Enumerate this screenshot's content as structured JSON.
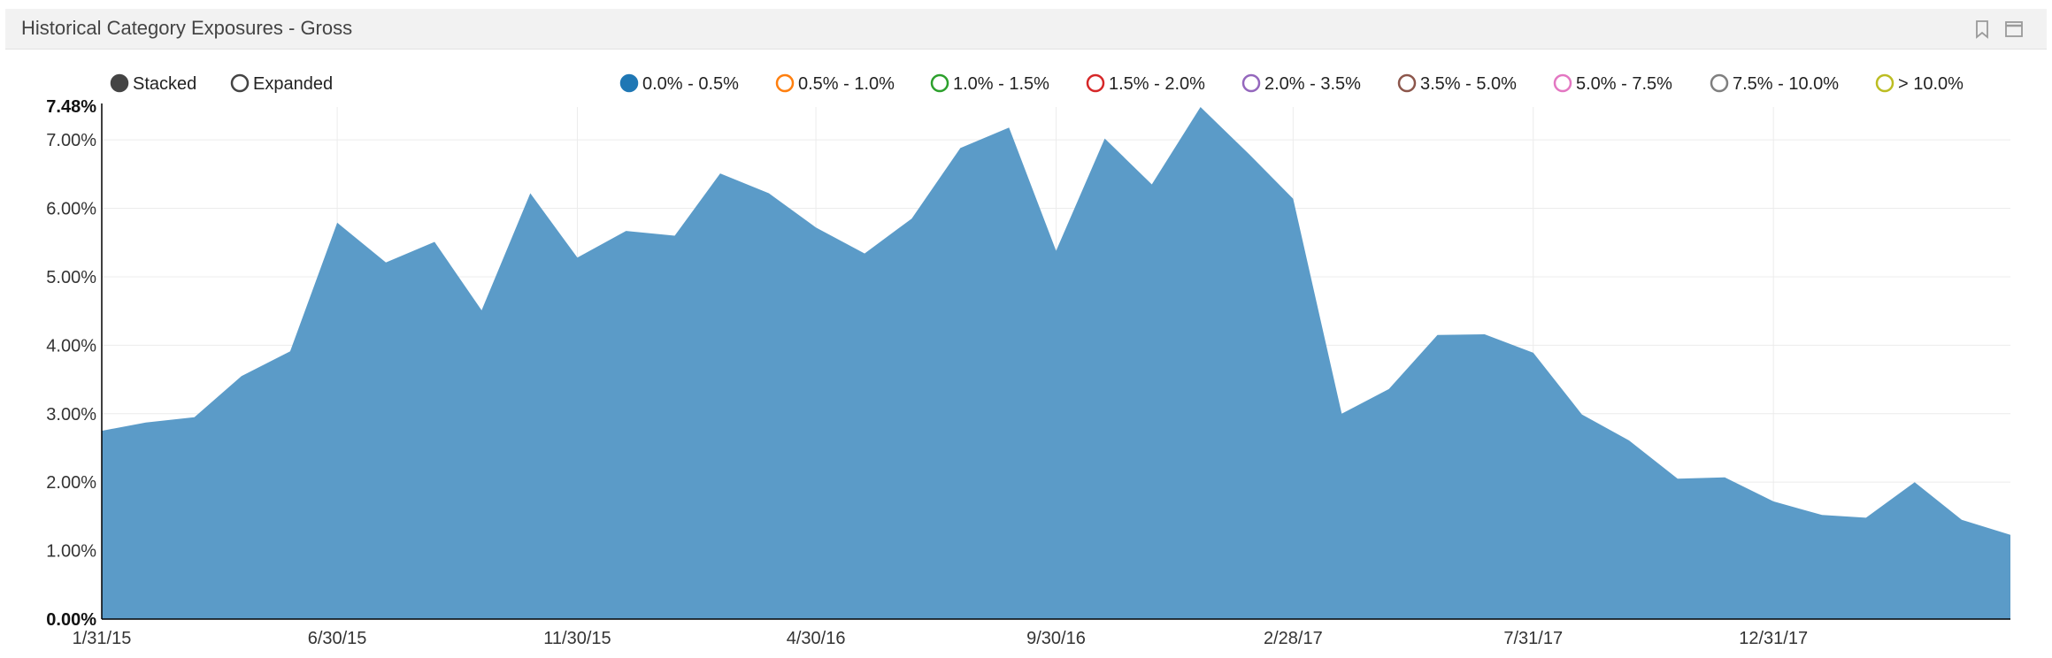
{
  "panel": {
    "title": "Historical Category Exposures - Gross",
    "icons": [
      "bookmark-icon",
      "maximize-icon"
    ]
  },
  "controls": {
    "mode_options": [
      {
        "label": "Stacked",
        "selected": true
      },
      {
        "label": "Expanded",
        "selected": false
      }
    ]
  },
  "legend": {
    "items": [
      {
        "label": "0.0% - 0.5%",
        "color": "#1f77b4",
        "active": true
      },
      {
        "label": "0.5% - 1.0%",
        "color": "#ff7f0e",
        "active": false
      },
      {
        "label": "1.0% - 1.5%",
        "color": "#2ca02c",
        "active": false
      },
      {
        "label": "1.5% - 2.0%",
        "color": "#d62728",
        "active": false
      },
      {
        "label": "2.0% - 3.5%",
        "color": "#9467bd",
        "active": false
      },
      {
        "label": "3.5% - 5.0%",
        "color": "#8c564b",
        "active": false
      },
      {
        "label": "5.0% - 7.5%",
        "color": "#e377c2",
        "active": false
      },
      {
        "label": "7.5% - 10.0%",
        "color": "#7f7f7f",
        "active": false
      },
      {
        "label": "> 10.0%",
        "color": "#bcbd22",
        "active": false
      }
    ]
  },
  "chart_data": {
    "type": "area",
    "stacked": true,
    "x_tick_labels": [
      "1/31/15",
      "6/30/15",
      "11/30/15",
      "4/30/16",
      "9/30/16",
      "2/28/17",
      "7/31/17",
      "12/31/17"
    ],
    "y_tick_labels": [
      "0.00%",
      "1.00%",
      "2.00%",
      "3.00%",
      "4.00%",
      "5.00%",
      "6.00%",
      "7.00%"
    ],
    "y_max_label": "7.48%",
    "ylim": [
      0,
      7.48
    ],
    "grid": true,
    "x": [
      "2015-01-31",
      "2015-02-28",
      "2015-03-31",
      "2015-04-30",
      "2015-05-31",
      "2015-06-30",
      "2015-07-31",
      "2015-08-31",
      "2015-09-30",
      "2015-10-31",
      "2015-11-30",
      "2015-12-31",
      "2016-01-31",
      "2016-02-29",
      "2016-03-31",
      "2016-04-30",
      "2016-05-31",
      "2016-06-30",
      "2016-07-31",
      "2016-08-31",
      "2016-09-30",
      "2016-10-31",
      "2016-11-30",
      "2016-12-31",
      "2017-01-31",
      "2017-02-28",
      "2017-03-31",
      "2017-04-30",
      "2017-05-31",
      "2017-06-30",
      "2017-07-31",
      "2017-08-31",
      "2017-09-30",
      "2017-10-31",
      "2017-11-30",
      "2017-12-31",
      "2018-01-31",
      "2018-02-28",
      "2018-03-31",
      "2018-04-30",
      "2018-05-31"
    ],
    "series": [
      {
        "name": "0.0% - 0.5%",
        "color": "#5b9bc8",
        "values": [
          2.75,
          2.87,
          2.95,
          3.55,
          3.91,
          5.79,
          5.21,
          5.51,
          4.51,
          6.22,
          5.28,
          5.67,
          5.6,
          6.51,
          6.22,
          5.72,
          5.34,
          5.85,
          6.88,
          7.18,
          5.38,
          7.02,
          6.35,
          7.48,
          6.79,
          6.14,
          3.0,
          3.36,
          4.15,
          4.16,
          3.89,
          2.99,
          2.61,
          2.05,
          2.07,
          1.72,
          1.52,
          1.48,
          2.0,
          1.45,
          1.23
        ]
      }
    ]
  }
}
